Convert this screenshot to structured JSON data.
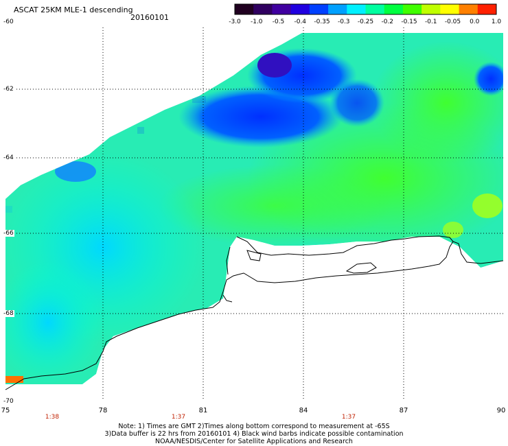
{
  "header": {
    "title": "ASCAT 25KM MLE-1 descending",
    "date": "20160101"
  },
  "colorbar": {
    "ticks": [
      "-3.0",
      "-1.0",
      "-0.5",
      "-0.4",
      "-0.35",
      "-0.3",
      "-0.25",
      "-0.2",
      "-0.15",
      "-0.1",
      "-0.05",
      "0.0",
      "1.0"
    ],
    "colors": [
      "#200020",
      "#300060",
      "#4000a0",
      "#2000e0",
      "#0040ff",
      "#00a0ff",
      "#00f0ff",
      "#00ffa0",
      "#00ff40",
      "#40ff00",
      "#c0ff00",
      "#ffff00",
      "#ff8000",
      "#ff2000"
    ]
  },
  "axes": {
    "lon_labels": [
      "75",
      "78",
      "81",
      "84",
      "87",
      "90"
    ],
    "lat_labels": [
      "-60",
      "-62",
      "-64",
      "-66",
      "-68",
      "-70"
    ],
    "times": [
      "1:38",
      "1:37",
      "1:37"
    ]
  },
  "notes": [
    "Note: 1) Times are GMT 2)Times along bottom correspond to measurement at -65S",
    "3)Data buffer is 22 hrs from 20160101 4) Black wind barbs indicate possible contamination",
    "NOAA/NESDIS/Center for Satellite Applications and Research"
  ]
}
